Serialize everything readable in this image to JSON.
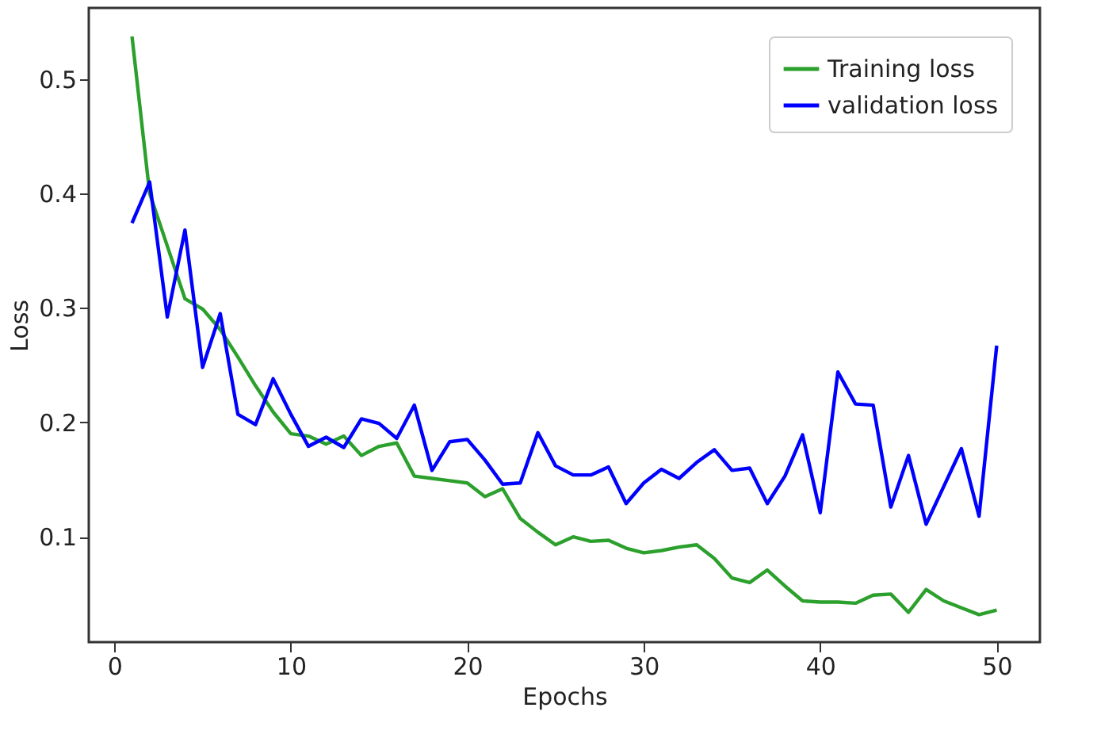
{
  "chart_data": {
    "type": "line",
    "xlabel": "Epochs",
    "ylabel": "Loss",
    "x": [
      1,
      2,
      3,
      4,
      5,
      6,
      7,
      8,
      9,
      10,
      11,
      12,
      13,
      14,
      15,
      16,
      17,
      18,
      19,
      20,
      21,
      22,
      23,
      24,
      25,
      26,
      27,
      28,
      29,
      30,
      31,
      32,
      33,
      34,
      35,
      36,
      37,
      38,
      39,
      40,
      41,
      42,
      43,
      44,
      45,
      46,
      47,
      48,
      49,
      50
    ],
    "series": [
      {
        "name": "Training loss",
        "color": "#2ca02c",
        "values": [
          0.537,
          0.4,
          0.354,
          0.308,
          0.299,
          0.281,
          0.257,
          0.232,
          0.209,
          0.19,
          0.188,
          0.181,
          0.188,
          0.171,
          0.179,
          0.182,
          0.153,
          0.151,
          0.149,
          0.147,
          0.135,
          0.142,
          0.116,
          0.104,
          0.093,
          0.1,
          0.096,
          0.097,
          0.09,
          0.086,
          0.088,
          0.091,
          0.093,
          0.081,
          0.064,
          0.06,
          0.071,
          0.057,
          0.044,
          0.043,
          0.043,
          0.042,
          0.049,
          0.05,
          0.034,
          0.054,
          0.044,
          0.038,
          0.032,
          0.036
        ]
      },
      {
        "name": "validation loss",
        "color": "#0000ff",
        "values": [
          0.374,
          0.41,
          0.292,
          0.368,
          0.248,
          0.295,
          0.207,
          0.198,
          0.238,
          0.207,
          0.179,
          0.187,
          0.178,
          0.203,
          0.199,
          0.186,
          0.215,
          0.158,
          0.183,
          0.185,
          0.167,
          0.146,
          0.147,
          0.191,
          0.162,
          0.154,
          0.154,
          0.161,
          0.129,
          0.147,
          0.159,
          0.151,
          0.165,
          0.176,
          0.158,
          0.16,
          0.129,
          0.153,
          0.189,
          0.121,
          0.244,
          0.216,
          0.215,
          0.126,
          0.171,
          0.111,
          0.144,
          0.177,
          0.118,
          0.267
        ]
      }
    ],
    "xlim": [
      -1.45,
      52.45
    ],
    "ylim": [
      0.008,
      0.562
    ],
    "xticks": [
      0,
      10,
      20,
      30,
      40,
      50
    ],
    "yticks": [
      0.1,
      0.2,
      0.3,
      0.4,
      0.5
    ],
    "legend": "top right",
    "grid": false,
    "marker": "none",
    "line_style": "solid"
  }
}
